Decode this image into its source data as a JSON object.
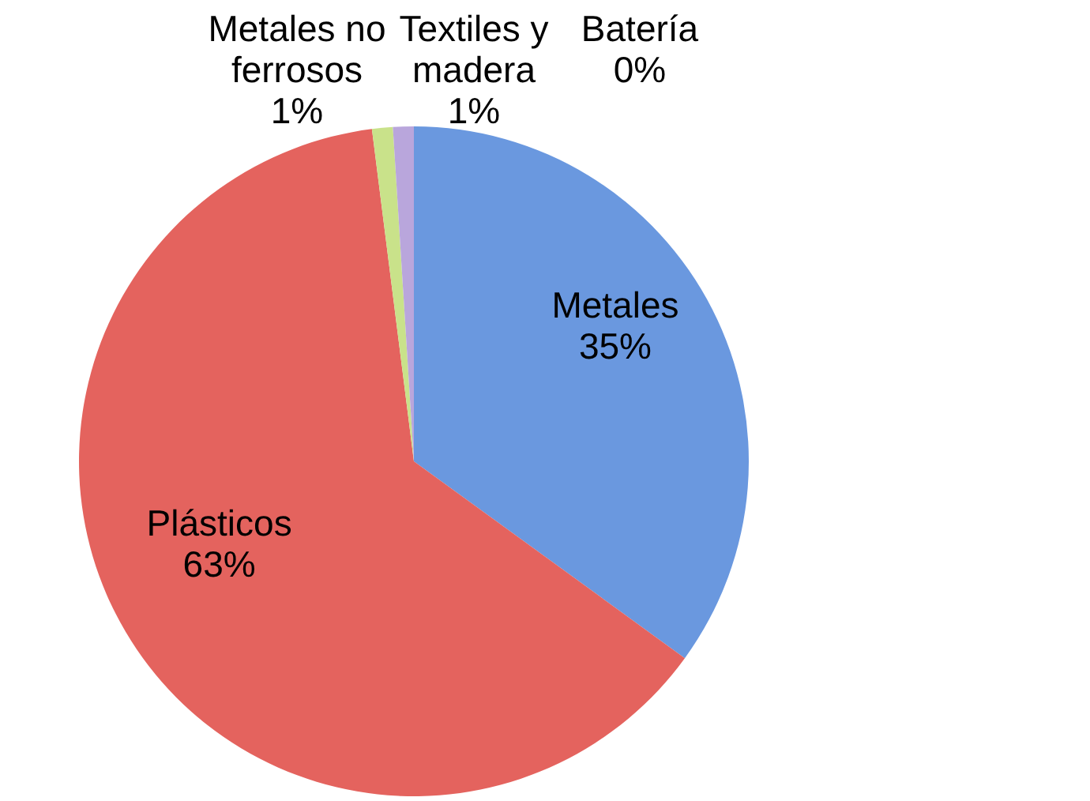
{
  "chart_data": {
    "type": "pie",
    "categories": [
      "Metales",
      "Plásticos",
      "Metales no ferrosos",
      "Textiles y madera",
      "Batería"
    ],
    "values": [
      35,
      63,
      1,
      1,
      0
    ],
    "value_labels": [
      "35%",
      "63%",
      "1%",
      "1%",
      "0%"
    ],
    "colors": [
      "#6a98df",
      "#e4635e",
      "#c9e28a",
      "#b9a6dc",
      "#5cc0d6"
    ]
  }
}
